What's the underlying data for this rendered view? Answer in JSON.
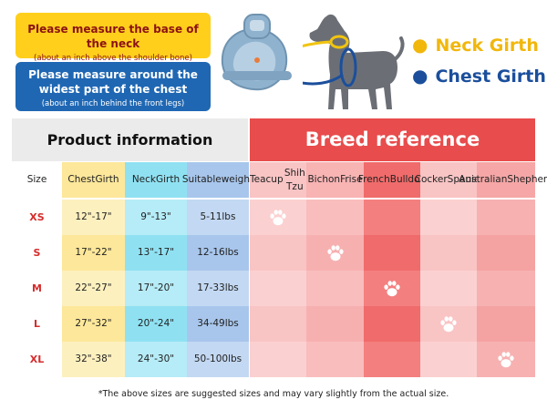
{
  "banners": {
    "neck_main": "Please measure the base of the neck",
    "neck_sub": "(about an inch above the shoulder bone)",
    "chest_main_1": "Please measure around  the",
    "chest_main_2": "widest part of the chest",
    "chest_sub": "(about an inch behind the front legs)"
  },
  "legend": {
    "neck": "Neck Girth",
    "chest": "Chest Girth",
    "neck_color": "#f1b70b",
    "chest_color": "#1b4f9c"
  },
  "table": {
    "product_header": "Product information",
    "breed_header": "Breed reference",
    "columns": {
      "size": "Size",
      "chest_1": "Chest",
      "chest_2": "Girth",
      "neck_1": "Neck",
      "neck_2": "Girth",
      "weight_1": "Suitable",
      "weight_2": "weight"
    },
    "breeds": [
      {
        "line1": "Teacup",
        "line2": "Shih Tzu"
      },
      {
        "line1": "Bichon",
        "line2": "Frise"
      },
      {
        "line1": "French",
        "line2": "Bulldog"
      },
      {
        "line1": "Cocker",
        "line2": "Spaniel"
      },
      {
        "line1": "Australian",
        "line2": "Shepherd"
      }
    ],
    "rows": [
      {
        "size": "XS",
        "chest": "12\"-17\"",
        "neck": "9\"-13\"",
        "weight": "5-11lbs",
        "paw_breed": 0
      },
      {
        "size": "S",
        "chest": "17\"-22\"",
        "neck": "13\"-17\"",
        "weight": "12-16lbs",
        "paw_breed": 1
      },
      {
        "size": "M",
        "chest": "22\"-27\"",
        "neck": "17\"-20\"",
        "weight": "17-33lbs",
        "paw_breed": 2
      },
      {
        "size": "L",
        "chest": "27\"-32\"",
        "neck": "20\"-24\"",
        "weight": "34-49lbs",
        "paw_breed": 3
      },
      {
        "size": "XL",
        "chest": "32\"-38\"",
        "neck": "24\"-30\"",
        "weight": "50-100lbs",
        "paw_breed": 4
      }
    ],
    "paw_icon": "paw-icon"
  },
  "footnote": "*The above sizes are suggested sizes and may vary slightly from the actual size.",
  "colors": {
    "accent_red": "#e84c4c",
    "size_red": "#d62c2c",
    "chest_col": "#fde79a",
    "neck_col": "#8fe1f2",
    "weight_col": "#a8c6ec"
  }
}
